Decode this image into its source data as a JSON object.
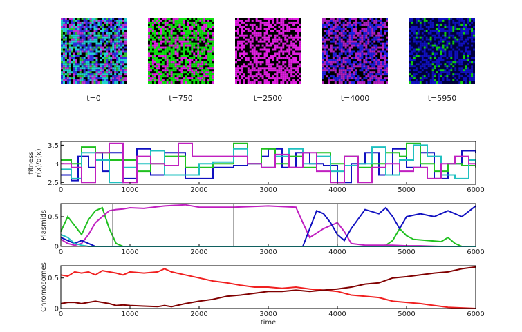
{
  "snapshots": [
    {
      "label": "t=0",
      "mix": [
        [
          "#20d0d0",
          0.3
        ],
        [
          "#3030e0",
          0.25
        ],
        [
          "#c030d0",
          0.15
        ],
        [
          "#30c030",
          0.1
        ],
        [
          "#000000",
          0.2
        ]
      ]
    },
    {
      "label": "t=750",
      "mix": [
        [
          "#10e010",
          0.45
        ],
        [
          "#e020e0",
          0.3
        ],
        [
          "#000000",
          0.25
        ]
      ]
    },
    {
      "label": "t=2500",
      "mix": [
        [
          "#e020e0",
          0.6
        ],
        [
          "#000000",
          0.4
        ]
      ]
    },
    {
      "label": "t=4000",
      "mix": [
        [
          "#b020c0",
          0.35
        ],
        [
          "#2020e0",
          0.35
        ],
        [
          "#000000",
          0.3
        ]
      ]
    },
    {
      "label": "t=5950",
      "mix": [
        [
          "#1010c0",
          0.45
        ],
        [
          "#10d010",
          0.1
        ],
        [
          "#000040",
          0.45
        ]
      ]
    }
  ],
  "chart_data": [
    {
      "type": "line",
      "ylabel_lines": [
        "fitness",
        "r(x)/d(x)"
      ],
      "xlim": [
        0,
        6000
      ],
      "ylim": [
        2.45,
        3.6
      ],
      "xticks": [
        0,
        1000,
        2000,
        3000,
        4000,
        5000,
        6000
      ],
      "yticks": [
        2.5,
        3,
        3.5
      ],
      "ytick_labels": [
        "2.5",
        "3",
        "3.5"
      ],
      "series": [
        {
          "color": "#1010c0",
          "x": [
            0,
            150,
            250,
            400,
            500,
            600,
            700,
            900,
            1100,
            1300,
            1500,
            1800,
            2000,
            2200,
            2500,
            2700,
            2900,
            3000,
            3200,
            3400,
            3600,
            3800,
            4000,
            4200,
            4400,
            4600,
            4800,
            5000,
            5200,
            5400,
            5600,
            5800,
            6000
          ],
          "y": [
            2.7,
            2.55,
            3.2,
            2.9,
            3.3,
            2.8,
            3.3,
            2.6,
            3.4,
            2.7,
            3.3,
            2.6,
            2.6,
            2.9,
            2.95,
            3.0,
            3.2,
            3.4,
            2.9,
            3.3,
            3.0,
            2.95,
            2.5,
            3.0,
            3.3,
            2.7,
            3.4,
            2.9,
            3.3,
            2.6,
            3.0,
            3.35,
            3.3
          ]
        },
        {
          "color": "#20c020",
          "x": [
            0,
            150,
            300,
            500,
            700,
            900,
            1100,
            1300,
            1500,
            1800,
            2000,
            2200,
            2500,
            2700,
            2900,
            3100,
            3300,
            3500,
            3700,
            3900,
            4100,
            4300,
            4500,
            4700,
            4900,
            5000,
            5200,
            5400,
            5600,
            5800,
            6000
          ],
          "y": [
            3.1,
            3.0,
            3.45,
            3.3,
            3.1,
            3.1,
            2.8,
            3.0,
            3.2,
            2.9,
            2.9,
            3.0,
            3.55,
            3.0,
            3.4,
            3.0,
            3.2,
            2.9,
            3.3,
            3.0,
            3.2,
            2.9,
            3.0,
            3.3,
            3.2,
            3.55,
            3.0,
            2.8,
            3.0,
            2.95,
            2.9
          ]
        },
        {
          "color": "#20c0c0",
          "x": [
            0,
            150,
            300,
            500,
            700,
            900,
            1100,
            1300,
            1500,
            1800,
            2000,
            2200,
            2500,
            2700,
            2900,
            3100,
            3300,
            3500,
            3700,
            3900,
            4100,
            4300,
            4500,
            4700,
            4900,
            5100,
            5300,
            5500,
            5700,
            5900,
            6000
          ],
          "y": [
            2.85,
            2.6,
            3.3,
            3.1,
            2.5,
            2.9,
            3.0,
            3.35,
            2.7,
            2.7,
            3.0,
            3.05,
            3.4,
            3.0,
            2.9,
            3.2,
            3.4,
            3.0,
            3.2,
            2.8,
            2.95,
            3.0,
            3.45,
            2.7,
            3.1,
            3.5,
            3.2,
            2.7,
            2.6,
            3.1,
            3.0
          ]
        },
        {
          "color": "#c020c0",
          "x": [
            0,
            150,
            300,
            500,
            700,
            900,
            1100,
            1300,
            1500,
            1700,
            1900,
            2100,
            2300,
            2500,
            2700,
            2900,
            3100,
            3300,
            3500,
            3700,
            3900,
            4100,
            4300,
            4500,
            4700,
            4900,
            5100,
            5300,
            5500,
            5700,
            5900,
            6000
          ],
          "y": [
            3.0,
            2.9,
            2.5,
            3.3,
            3.55,
            2.5,
            3.2,
            3.0,
            2.95,
            3.55,
            3.2,
            3.2,
            3.2,
            3.2,
            3.0,
            2.9,
            3.25,
            2.9,
            3.3,
            2.8,
            2.5,
            3.2,
            2.5,
            2.9,
            3.0,
            2.8,
            2.9,
            2.6,
            3.0,
            3.2,
            3.0,
            2.95
          ]
        }
      ]
    },
    {
      "type": "line",
      "ylabel": "Plasmids",
      "xlim": [
        0,
        6000
      ],
      "ylim": [
        0,
        0.72
      ],
      "xticks": [
        0,
        1000,
        2000,
        3000,
        4000,
        5000,
        6000
      ],
      "yticks": [
        0,
        0.5
      ],
      "ytick_labels": [
        "0",
        "0.5"
      ],
      "vlines": [
        750,
        2500,
        4000
      ],
      "series": [
        {
          "color": "#20c020",
          "x": [
            0,
            100,
            200,
            300,
            400,
            500,
            600,
            700,
            800,
            900,
            1000,
            2000,
            3000,
            4000,
            4500,
            4700,
            4800,
            4900,
            5000,
            5100,
            5300,
            5500,
            5600,
            5700,
            5800,
            6000
          ],
          "y": [
            0.25,
            0.5,
            0.35,
            0.2,
            0.45,
            0.6,
            0.65,
            0.3,
            0.05,
            0.0,
            0.0,
            0.0,
            0.0,
            0.0,
            0.0,
            0.02,
            0.1,
            0.3,
            0.18,
            0.12,
            0.1,
            0.08,
            0.15,
            0.05,
            0.0,
            0.0
          ]
        },
        {
          "color": "#c020c0",
          "x": [
            0,
            100,
            200,
            300,
            400,
            500,
            600,
            700,
            800,
            900,
            1000,
            1200,
            1500,
            1800,
            2000,
            2500,
            3000,
            3400,
            3500,
            3600,
            3800,
            4000,
            4100,
            4200,
            4400,
            4800,
            5000,
            5200,
            5500,
            5800,
            6000
          ],
          "y": [
            0.12,
            0.05,
            0.02,
            0.05,
            0.2,
            0.4,
            0.5,
            0.6,
            0.62,
            0.63,
            0.65,
            0.64,
            0.68,
            0.7,
            0.66,
            0.66,
            0.68,
            0.66,
            0.4,
            0.15,
            0.3,
            0.4,
            0.25,
            0.05,
            0.02,
            0.02,
            0.01,
            0.01,
            0.0,
            0.0,
            0.0
          ]
        },
        {
          "color": "#1010c0",
          "x": [
            0,
            100,
            200,
            300,
            400,
            500,
            1000,
            2000,
            3000,
            3500,
            3600,
            3700,
            3800,
            3900,
            4000,
            4100,
            4200,
            4400,
            4600,
            4700,
            4800,
            4900,
            5000,
            5200,
            5400,
            5600,
            5800,
            6000
          ],
          "y": [
            0.15,
            0.1,
            0.05,
            0.1,
            0.05,
            0.0,
            0.0,
            0.0,
            0.0,
            0.0,
            0.3,
            0.6,
            0.55,
            0.4,
            0.2,
            0.1,
            0.3,
            0.62,
            0.55,
            0.65,
            0.5,
            0.3,
            0.5,
            0.55,
            0.5,
            0.6,
            0.5,
            0.68
          ]
        },
        {
          "color": "#20c0c0",
          "x": [
            0,
            100,
            200,
            300,
            400,
            600,
            1000,
            2000,
            3000,
            4000,
            5000,
            6000
          ],
          "y": [
            0.2,
            0.15,
            0.05,
            0.02,
            0.0,
            0.0,
            0.0,
            0.0,
            0.0,
            0.0,
            0.0,
            0.0
          ]
        }
      ]
    },
    {
      "type": "line",
      "ylabel": "Chromosomes",
      "xlabel": "time",
      "xlim": [
        0,
        6000
      ],
      "ylim": [
        0,
        0.7
      ],
      "xticks": [
        0,
        1000,
        2000,
        3000,
        4000,
        5000,
        6000
      ],
      "xtick_labels": [
        "0",
        "1000",
        "2000",
        "3000",
        "4000",
        "5000",
        "6000"
      ],
      "yticks": [
        0,
        0.5
      ],
      "ytick_labels": [
        "0",
        "0.5"
      ],
      "series": [
        {
          "color": "#f02020",
          "x": [
            0,
            100,
            200,
            300,
            400,
            500,
            600,
            700,
            800,
            900,
            1000,
            1200,
            1400,
            1500,
            1600,
            1800,
            2000,
            2200,
            2400,
            2600,
            2800,
            3000,
            3200,
            3400,
            3600,
            3800,
            4000,
            4200,
            4400,
            4600,
            4800,
            5000,
            5200,
            5400,
            5600,
            5800,
            6000
          ],
          "y": [
            0.55,
            0.53,
            0.6,
            0.58,
            0.6,
            0.55,
            0.62,
            0.6,
            0.58,
            0.55,
            0.6,
            0.58,
            0.6,
            0.65,
            0.6,
            0.55,
            0.5,
            0.45,
            0.42,
            0.38,
            0.35,
            0.35,
            0.33,
            0.35,
            0.32,
            0.3,
            0.28,
            0.22,
            0.2,
            0.18,
            0.12,
            0.1,
            0.08,
            0.05,
            0.02,
            0.01,
            0.0
          ]
        },
        {
          "color": "#800000",
          "x": [
            0,
            100,
            200,
            300,
            400,
            500,
            600,
            700,
            800,
            900,
            1000,
            1200,
            1400,
            1500,
            1600,
            1800,
            2000,
            2200,
            2400,
            2600,
            2800,
            3000,
            3200,
            3400,
            3600,
            3800,
            4000,
            4200,
            4400,
            4600,
            4800,
            5000,
            5200,
            5400,
            5600,
            5800,
            6000
          ],
          "y": [
            0.08,
            0.1,
            0.1,
            0.08,
            0.1,
            0.12,
            0.1,
            0.08,
            0.05,
            0.06,
            0.05,
            0.04,
            0.03,
            0.05,
            0.03,
            0.08,
            0.12,
            0.15,
            0.2,
            0.22,
            0.25,
            0.28,
            0.28,
            0.3,
            0.28,
            0.3,
            0.32,
            0.35,
            0.4,
            0.42,
            0.5,
            0.52,
            0.55,
            0.58,
            0.6,
            0.65,
            0.68
          ]
        }
      ]
    }
  ]
}
